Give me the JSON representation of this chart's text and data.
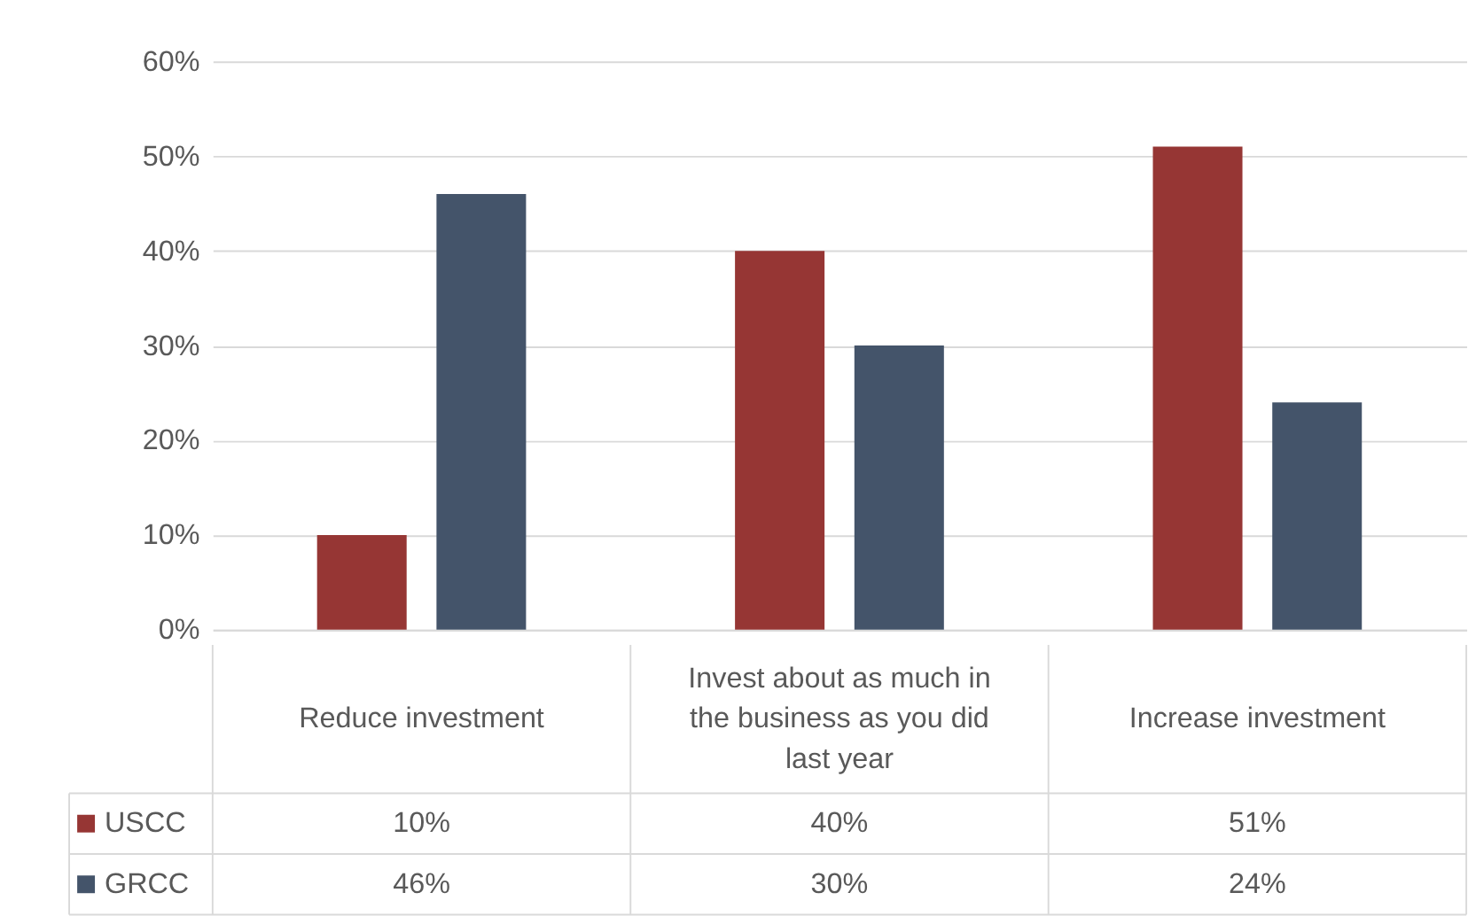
{
  "chart_data": {
    "type": "bar",
    "categories": [
      "Reduce investment",
      "Invest about as much in the business as you did last year",
      "Increase investment"
    ],
    "series": [
      {
        "name": "USCC",
        "color": "#963634",
        "values": [
          10,
          40,
          51
        ],
        "value_labels": [
          "10%",
          "40%",
          "51%"
        ]
      },
      {
        "name": "GRCC",
        "color": "#44546a",
        "values": [
          46,
          30,
          24
        ],
        "value_labels": [
          "46%",
          "30%",
          "24%"
        ]
      }
    ],
    "ylim": [
      0,
      60
    ],
    "yticks": [
      {
        "value": 0,
        "label": "0%"
      },
      {
        "value": 10,
        "label": "10%"
      },
      {
        "value": 20,
        "label": "20%"
      },
      {
        "value": 30,
        "label": "30%"
      },
      {
        "value": 40,
        "label": "40%"
      },
      {
        "value": 50,
        "label": "50%"
      },
      {
        "value": 60,
        "label": "60%"
      }
    ],
    "grid": "y",
    "legend": "bottom"
  }
}
